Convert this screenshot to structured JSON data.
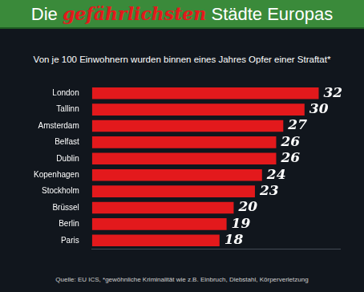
{
  "chart_data": {
    "type": "bar",
    "title": "Die gefährlichsten Städte Europas",
    "subtitle": "Von je 100 Einwohnern wurden binnen eines Jahres Opfer einer Straftat*",
    "categories": [
      "London",
      "Tallinn",
      "Amsterdam",
      "Belfast",
      "Dublin",
      "Kopenhagen",
      "Stockholm",
      "Brüssel",
      "Berlin",
      "Paris"
    ],
    "values": [
      32,
      30,
      27,
      26,
      26,
      24,
      23,
      20,
      19,
      18
    ],
    "color": "#e3191c",
    "orientation": "horizontal",
    "xlim": [
      0,
      35
    ],
    "grid": false,
    "data_labels": true,
    "tick_labels": "y",
    "footnote": "Quelle: EU ICS, *gewöhnliche Kriminalität wie z.B. Einbruch, Diebstahl, Körperverletzung"
  }
}
